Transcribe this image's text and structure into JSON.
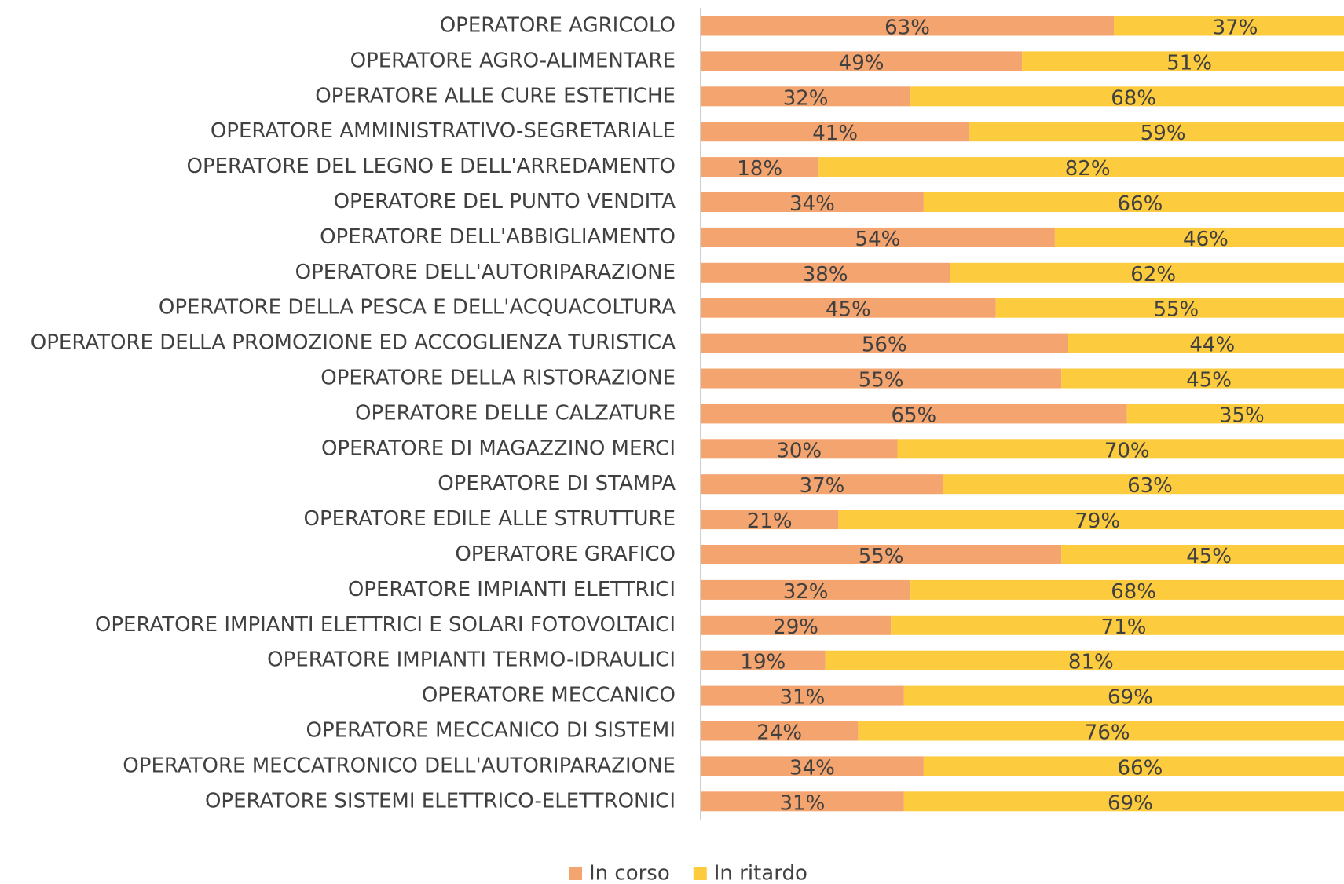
{
  "chart_data": {
    "type": "stacked_barh",
    "categories": [
      "OPERATORE AGRICOLO",
      "OPERATORE AGRO-ALIMENTARE",
      "OPERATORE ALLE CURE ESTETICHE",
      "OPERATORE AMMINISTRATIVO-SEGRETARIALE",
      "OPERATORE DEL LEGNO E DELL'ARREDAMENTO",
      "OPERATORE DEL PUNTO VENDITA",
      "OPERATORE DELL'ABBIGLIAMENTO",
      "OPERATORE DELL'AUTORIPARAZIONE",
      "OPERATORE DELLA PESCA E DELL'ACQUACOLTURA",
      "OPERATORE DELLA PROMOZIONE ED ACCOGLIENZA TURISTICA",
      "OPERATORE DELLA RISTORAZIONE",
      "OPERATORE DELLE CALZATURE",
      "OPERATORE DI MAGAZZINO MERCI",
      "OPERATORE DI STAMPA",
      "OPERATORE EDILE ALLE STRUTTURE",
      "OPERATORE GRAFICO",
      "OPERATORE IMPIANTI ELETTRICI",
      "OPERATORE IMPIANTI ELETTRICI E SOLARI FOTOVOLTAICI",
      "OPERATORE IMPIANTI TERMO-IDRAULICI",
      "OPERATORE MECCANICO",
      "OPERATORE MECCANICO DI SISTEMI",
      "OPERATORE MECCATRONICO DELL'AUTORIPARAZIONE",
      "OPERATORE SISTEMI ELETTRICO-ELETTRONICI"
    ],
    "series": [
      {
        "name": "In corso",
        "color": "#f4a46e",
        "values": [
          63,
          49,
          32,
          41,
          18,
          34,
          54,
          38,
          45,
          56,
          55,
          65,
          30,
          37,
          21,
          55,
          32,
          29,
          19,
          31,
          24,
          34,
          31
        ],
        "value_labels": [
          "63%",
          "49%",
          "32%",
          "41%",
          "18%",
          "34%",
          "54%",
          "38%",
          "45%",
          "56%",
          "55%",
          "65%",
          "30%",
          "37%",
          "21%",
          "55%",
          "32%",
          "29%",
          "19%",
          "31%",
          "24%",
          "34%",
          "31%"
        ]
      },
      {
        "name": "In ritardo",
        "color": "#fdcb3e",
        "values": [
          37,
          51,
          68,
          59,
          82,
          66,
          46,
          62,
          55,
          44,
          45,
          35,
          70,
          63,
          79,
          45,
          68,
          71,
          81,
          69,
          76,
          66,
          69
        ],
        "value_labels": [
          "37%",
          "51%",
          "68%",
          "59%",
          "82%",
          "66%",
          "46%",
          "62%",
          "55%",
          "44%",
          "45%",
          "35%",
          "70%",
          "63%",
          "79%",
          "45%",
          "68%",
          "71%",
          "81%",
          "69%",
          "76%",
          "66%",
          "69%"
        ]
      }
    ],
    "xlim": [
      0,
      100
    ]
  }
}
